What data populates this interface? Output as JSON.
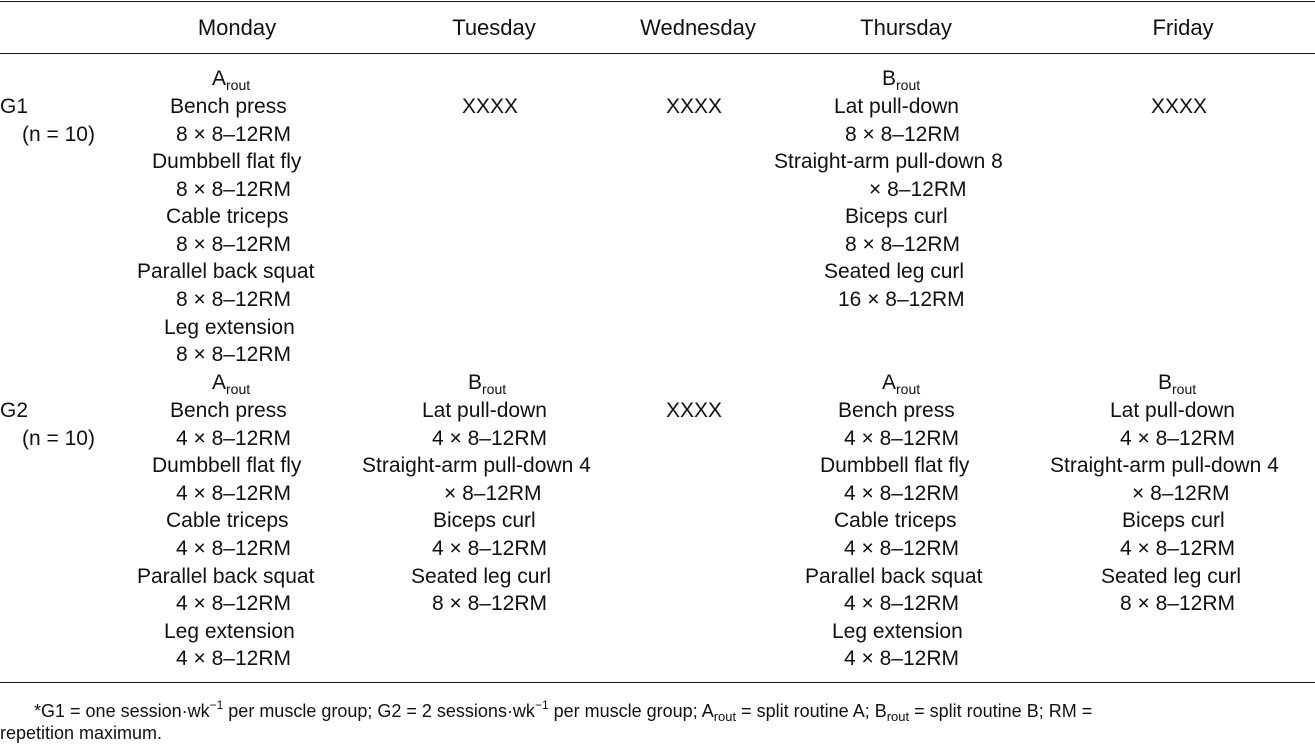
{
  "header": {
    "days": [
      "Monday",
      "Tuesday",
      "Wednesday",
      "Thursday",
      "Friday"
    ]
  },
  "g1": {
    "label": "G1",
    "n": "(n = 10)",
    "monday": {
      "routine_letter": "A",
      "routine_sub": "rout",
      "lines": [
        "Bench press",
        "8 × 8–12RM",
        "Dumbbell flat fly",
        "8 × 8–12RM",
        "Cable triceps",
        "8 × 8–12RM",
        "Parallel back squat",
        "8 × 8–12RM",
        "Leg extension",
        "8 × 8–12RM"
      ]
    },
    "tuesday": "XXXX",
    "wednesday": "XXXX",
    "thursday": {
      "routine_letter": "B",
      "routine_sub": "rout",
      "lines": [
        "Lat pull-down",
        "8 × 8–12RM",
        "Straight-arm pull-down 8",
        "× 8–12RM",
        "Biceps curl",
        "8 × 8–12RM",
        "Seated leg curl",
        "16 × 8–12RM"
      ]
    },
    "friday": "XXXX"
  },
  "g2": {
    "label": "G2",
    "n": "(n = 10)",
    "monday": {
      "routine_letter": "A",
      "routine_sub": "rout",
      "lines": [
        "Bench press",
        "4 × 8–12RM",
        "Dumbbell flat fly",
        "4 × 8–12RM",
        "Cable triceps",
        "4 × 8–12RM",
        "Parallel back squat",
        "4 × 8–12RM",
        "Leg extension",
        "4 × 8–12RM"
      ]
    },
    "tuesday": {
      "routine_letter": "B",
      "routine_sub": "rout",
      "lines": [
        "Lat pull-down",
        "4 × 8–12RM",
        "Straight-arm pull-down 4",
        "× 8–12RM",
        "Biceps curl",
        "4 × 8–12RM",
        "Seated leg curl",
        "8 × 8–12RM"
      ]
    },
    "wednesday": "XXXX",
    "thursday": {
      "routine_letter": "A",
      "routine_sub": "rout",
      "lines": [
        "Bench press",
        "4 × 8–12RM",
        "Dumbbell flat fly",
        "4 × 8–12RM",
        "Cable triceps",
        "4 × 8–12RM",
        "Parallel back squat",
        "4 × 8–12RM",
        "Leg extension",
        "4 × 8–12RM"
      ]
    },
    "friday": {
      "routine_letter": "B",
      "routine_sub": "rout",
      "lines": [
        "Lat pull-down",
        "4 × 8–12RM",
        "Straight-arm pull-down 4",
        "× 8–12RM",
        "Biceps curl",
        "4 × 8–12RM",
        "Seated leg curl",
        "8 × 8–12RM"
      ]
    }
  },
  "footnote": {
    "marker": "*",
    "g1_def": "G1 = one session·wk",
    "exp": "−1",
    "per_group_1": " per muscle group; G2 = 2 sessions·wk",
    "exp2": "−1",
    "per_group_2": " per muscle group; A",
    "a_sub": "rout",
    "a_def": " = split routine A; B",
    "b_sub": "rout",
    "b_def": " = split routine B; RM =",
    "line2": "repetition maximum."
  }
}
